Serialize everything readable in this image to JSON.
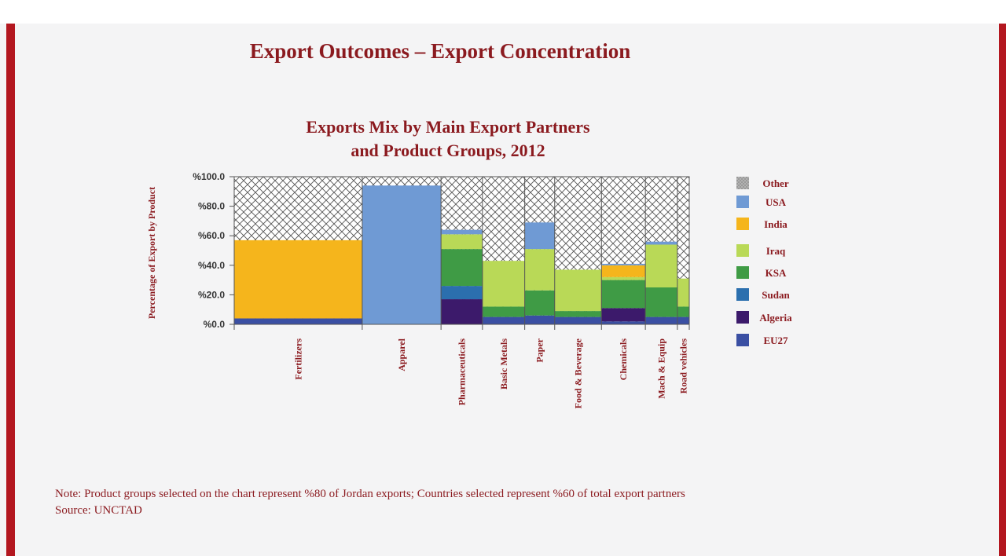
{
  "slide": {
    "title": "Export Outcomes – Export Concentration",
    "note": "Note: Product groups selected on the chart represent %80 of Jordan exports; Countries selected represent %60 of total export partners",
    "source": "Source: UNCTAD"
  },
  "chart_data": {
    "type": "bar",
    "subtype": "stacked-variable-width (marimekko)",
    "title_line1": "Exports Mix by Main Export Partners",
    "title_line2": "and Product Groups, 2012",
    "ylabel": "Percentage of Export by Product",
    "xlabel": "",
    "ylim": [
      0,
      100
    ],
    "yticks": [
      "%0.0",
      "%20.0",
      "%40.0",
      "%60.0",
      "%80.0",
      "%100.0"
    ],
    "grid": false,
    "legend_position": "right",
    "categories": [
      "Fertilizers",
      "Apparel",
      "Pharmaceuticals",
      "Basic Metals",
      "Paper",
      "Food & Beverage",
      "Chemicals",
      "Mach & Equip",
      "Road vehicles"
    ],
    "category_share_of_exports": [
      31.2,
      19.2,
      10.1,
      10.3,
      7.3,
      11.4,
      10.7,
      7.8,
      2.9
    ],
    "series": [
      {
        "name": "EU27",
        "color": "#3a4fa3",
        "values": [
          4.0,
          0.0,
          0.0,
          5.0,
          6.0,
          5.0,
          2.0,
          5.0,
          5.0
        ]
      },
      {
        "name": "Algeria",
        "color": "#3c1a6b",
        "values": [
          0.0,
          0.0,
          17.0,
          0.0,
          0.0,
          0.0,
          9.0,
          0.0,
          0.0
        ]
      },
      {
        "name": "Sudan",
        "color": "#2b6fae",
        "values": [
          0.0,
          0.0,
          9.0,
          0.0,
          0.0,
          0.0,
          0.0,
          0.0,
          0.0
        ]
      },
      {
        "name": "KSA",
        "color": "#3f9b45",
        "values": [
          0.0,
          0.0,
          25.0,
          7.0,
          17.0,
          4.0,
          19.0,
          20.0,
          7.0
        ]
      },
      {
        "name": "Iraq",
        "color": "#b9d957",
        "values": [
          0.0,
          0.0,
          10.0,
          31.0,
          28.0,
          28.0,
          2.0,
          29.0,
          19.0
        ]
      },
      {
        "name": "India",
        "color": "#f5b51c",
        "values": [
          53.0,
          0.0,
          0.0,
          0.0,
          0.0,
          0.0,
          8.0,
          0.0,
          0.0
        ]
      },
      {
        "name": "USA",
        "color": "#6f9ad4",
        "values": [
          0.0,
          94.0,
          3.0,
          0.0,
          18.0,
          0.0,
          1.0,
          2.0,
          0.0
        ]
      }
    ],
    "other_series": {
      "name": "Other",
      "color": "#a9a9a9"
    },
    "legend_order": [
      "Other",
      "USA",
      "India",
      "Iraq",
      "KSA",
      "Sudan",
      "Algeria",
      "EU27"
    ]
  }
}
